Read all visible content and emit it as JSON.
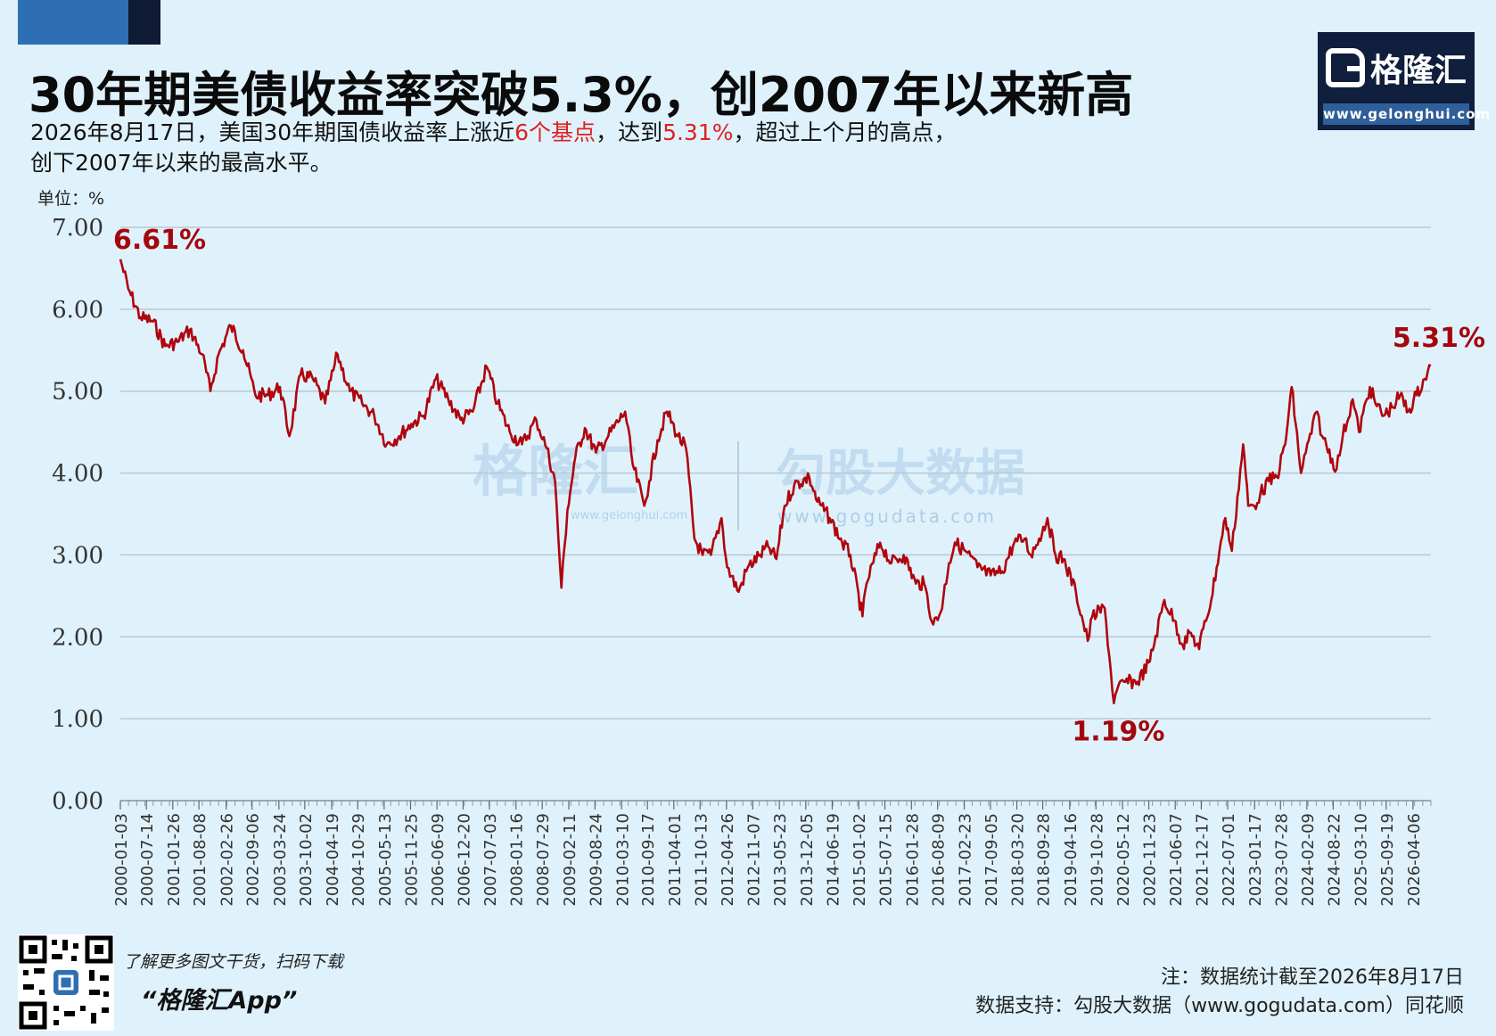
{
  "title": "30年期美债收益率突破5.3%，创2007年以来新高",
  "subtitle": {
    "line1_a": "2026年8月17日，美国30年期国债收益率上涨近",
    "line1_hl1": "6个基点",
    "line1_b": "，达到",
    "line1_hl2": "5.31%",
    "line1_c": "，超过上个月的高点，",
    "line2": "创下2007年以来的最高水平。"
  },
  "logo": {
    "name": "格隆汇",
    "url": "www.gelonghui.com"
  },
  "watermarks": {
    "left": "格隆汇",
    "left_url": "www.gelonghui.com",
    "right": "勾股大数据",
    "right_url": "www.gogudata.com"
  },
  "colors": {
    "line": "#b0050d",
    "annotation": "#a5060e",
    "background": "#dff2fc",
    "accent": "#e01f1f",
    "grid": "#b8c8d2"
  },
  "chart_data": {
    "type": "line",
    "unit_label": "单位：%",
    "ylim": [
      0,
      7
    ],
    "y_ticks": [
      "0.00",
      "1.00",
      "2.00",
      "3.00",
      "4.00",
      "5.00",
      "6.00",
      "7.00"
    ],
    "x_tick_labels": [
      "2000-01-03",
      "2000-07-14",
      "2001-01-26",
      "2001-08-08",
      "2002-02-26",
      "2002-09-06",
      "2003-03-24",
      "2003-10-02",
      "2004-04-19",
      "2004-10-29",
      "2005-05-13",
      "2005-11-25",
      "2006-06-09",
      "2006-12-20",
      "2007-07-03",
      "2008-01-16",
      "2008-07-29",
      "2009-02-11",
      "2009-08-24",
      "2010-03-10",
      "2010-09-17",
      "2011-04-01",
      "2011-10-13",
      "2012-04-26",
      "2012-11-07",
      "2013-05-23",
      "2013-12-05",
      "2014-06-19",
      "2015-01-02",
      "2015-07-15",
      "2016-01-28",
      "2016-08-09",
      "2017-02-23",
      "2017-09-05",
      "2018-03-20",
      "2018-09-28",
      "2019-04-16",
      "2019-10-28",
      "2020-05-12",
      "2020-11-23",
      "2021-06-07",
      "2021-12-17",
      "2022-07-01",
      "2023-01-17",
      "2023-07-28",
      "2024-02-09",
      "2024-08-22",
      "2025-03-10",
      "2025-09-19",
      "2026-04-06"
    ],
    "grid": true,
    "series": [
      {
        "x": [
          "2000-01-03",
          "2000-03-01",
          "2000-06-01",
          "2000-09-01",
          "2000-12-01",
          "2001-03-01",
          "2001-06-01",
          "2001-09-01",
          "2001-11-01",
          "2002-01-01",
          "2002-04-01",
          "2002-07-01",
          "2002-10-01",
          "2003-01-01",
          "2003-04-01",
          "2003-06-10",
          "2003-09-01",
          "2003-12-01",
          "2004-03-01",
          "2004-06-01",
          "2004-09-01",
          "2004-12-01",
          "2005-03-01",
          "2005-06-01",
          "2005-09-01",
          "2005-12-01",
          "2006-03-01",
          "2006-06-01",
          "2006-09-01",
          "2006-12-01",
          "2007-03-01",
          "2007-06-13",
          "2007-09-01",
          "2007-12-01",
          "2008-03-01",
          "2008-06-15",
          "2008-09-01",
          "2008-11-01",
          "2008-12-18",
          "2009-02-01",
          "2009-04-01",
          "2009-06-10",
          "2009-09-01",
          "2009-12-01",
          "2010-04-05",
          "2010-06-01",
          "2010-08-25",
          "2010-10-01",
          "2010-12-01",
          "2011-02-09",
          "2011-05-01",
          "2011-07-01",
          "2011-09-01",
          "2011-11-01",
          "2012-01-01",
          "2012-03-20",
          "2012-05-01",
          "2012-07-25",
          "2012-10-01",
          "2013-01-01",
          "2013-03-01",
          "2013-05-01",
          "2013-07-01",
          "2013-09-10",
          "2013-12-31",
          "2014-03-01",
          "2014-06-01",
          "2014-09-01",
          "2014-11-01",
          "2015-01-30",
          "2015-03-01",
          "2015-06-10",
          "2015-09-01",
          "2015-12-01",
          "2016-03-01",
          "2016-05-01",
          "2016-07-08",
          "2016-09-01",
          "2016-11-01",
          "2016-12-15",
          "2017-03-01",
          "2017-06-01",
          "2017-09-07",
          "2017-12-01",
          "2018-03-01",
          "2018-05-17",
          "2018-07-01",
          "2018-09-01",
          "2018-11-02",
          "2019-01-01",
          "2019-03-01",
          "2019-06-01",
          "2019-08-28",
          "2019-10-01",
          "2020-01-01",
          "2020-03-09",
          "2020-04-01",
          "2020-06-01",
          "2020-09-01",
          "2020-12-01",
          "2021-03-18",
          "2021-06-01",
          "2021-08-01",
          "2021-10-01",
          "2021-12-01",
          "2022-01-01",
          "2022-03-01",
          "2022-05-01",
          "2022-06-14",
          "2022-08-01",
          "2022-10-24",
          "2022-12-01",
          "2023-01-15",
          "2023-03-01",
          "2023-05-01",
          "2023-07-01",
          "2023-09-01",
          "2023-10-19",
          "2023-12-27",
          "2024-02-01",
          "2024-04-25",
          "2024-06-01",
          "2024-09-16",
          "2024-11-01",
          "2025-01-14",
          "2025-03-01",
          "2025-05-21",
          "2025-07-01",
          "2025-09-01",
          "2025-11-01",
          "2026-01-01",
          "2026-03-01",
          "2026-05-01",
          "2026-07-01",
          "2026-08-17"
        ],
        "y": [
          6.61,
          6.25,
          5.9,
          5.85,
          5.55,
          5.6,
          5.75,
          5.45,
          5.0,
          5.45,
          5.8,
          5.5,
          4.95,
          4.95,
          5.05,
          4.45,
          5.2,
          5.15,
          4.85,
          5.45,
          5.0,
          4.85,
          4.7,
          4.35,
          4.45,
          4.6,
          4.7,
          5.15,
          4.9,
          4.65,
          4.75,
          5.3,
          4.85,
          4.5,
          4.35,
          4.65,
          4.3,
          3.9,
          2.6,
          3.55,
          4.2,
          4.55,
          4.25,
          4.45,
          4.75,
          4.1,
          3.6,
          3.9,
          4.4,
          4.75,
          4.45,
          4.3,
          3.2,
          3.0,
          3.0,
          3.45,
          2.85,
          2.55,
          2.85,
          3.0,
          3.1,
          2.95,
          3.6,
          3.85,
          3.95,
          3.65,
          3.45,
          3.15,
          3.0,
          2.25,
          2.65,
          3.15,
          2.9,
          3.0,
          2.65,
          2.65,
          2.15,
          2.3,
          2.9,
          3.15,
          3.05,
          2.85,
          2.75,
          2.8,
          3.15,
          3.2,
          3.0,
          3.2,
          3.45,
          3.0,
          2.95,
          2.55,
          1.95,
          2.25,
          2.35,
          1.19,
          1.35,
          1.45,
          1.45,
          1.7,
          2.45,
          2.2,
          1.9,
          2.05,
          1.85,
          2.1,
          2.45,
          3.05,
          3.45,
          3.05,
          4.35,
          3.6,
          3.6,
          3.75,
          3.9,
          3.95,
          4.35,
          5.05,
          4.0,
          4.25,
          4.75,
          4.45,
          4.05,
          4.45,
          4.9,
          4.5,
          5.05,
          4.85,
          4.7,
          4.8,
          4.95,
          4.75,
          4.95,
          5.15,
          5.31
        ]
      }
    ],
    "annotations": [
      {
        "text": "6.61%",
        "x": "2000-01-03",
        "y": 6.61
      },
      {
        "text": "1.19%",
        "x": "2020-03-09",
        "y": 1.19
      },
      {
        "text": "5.31%",
        "x": "2026-08-17",
        "y": 5.31
      }
    ]
  },
  "footer": {
    "promo_line1": "了解更多图文干货，扫码下载",
    "promo_line2": "“格隆汇App”",
    "note": "注：数据统计截至2026年8月17日",
    "source": "数据支持：勾股大数据（www.gogudata.com）同花顺"
  }
}
